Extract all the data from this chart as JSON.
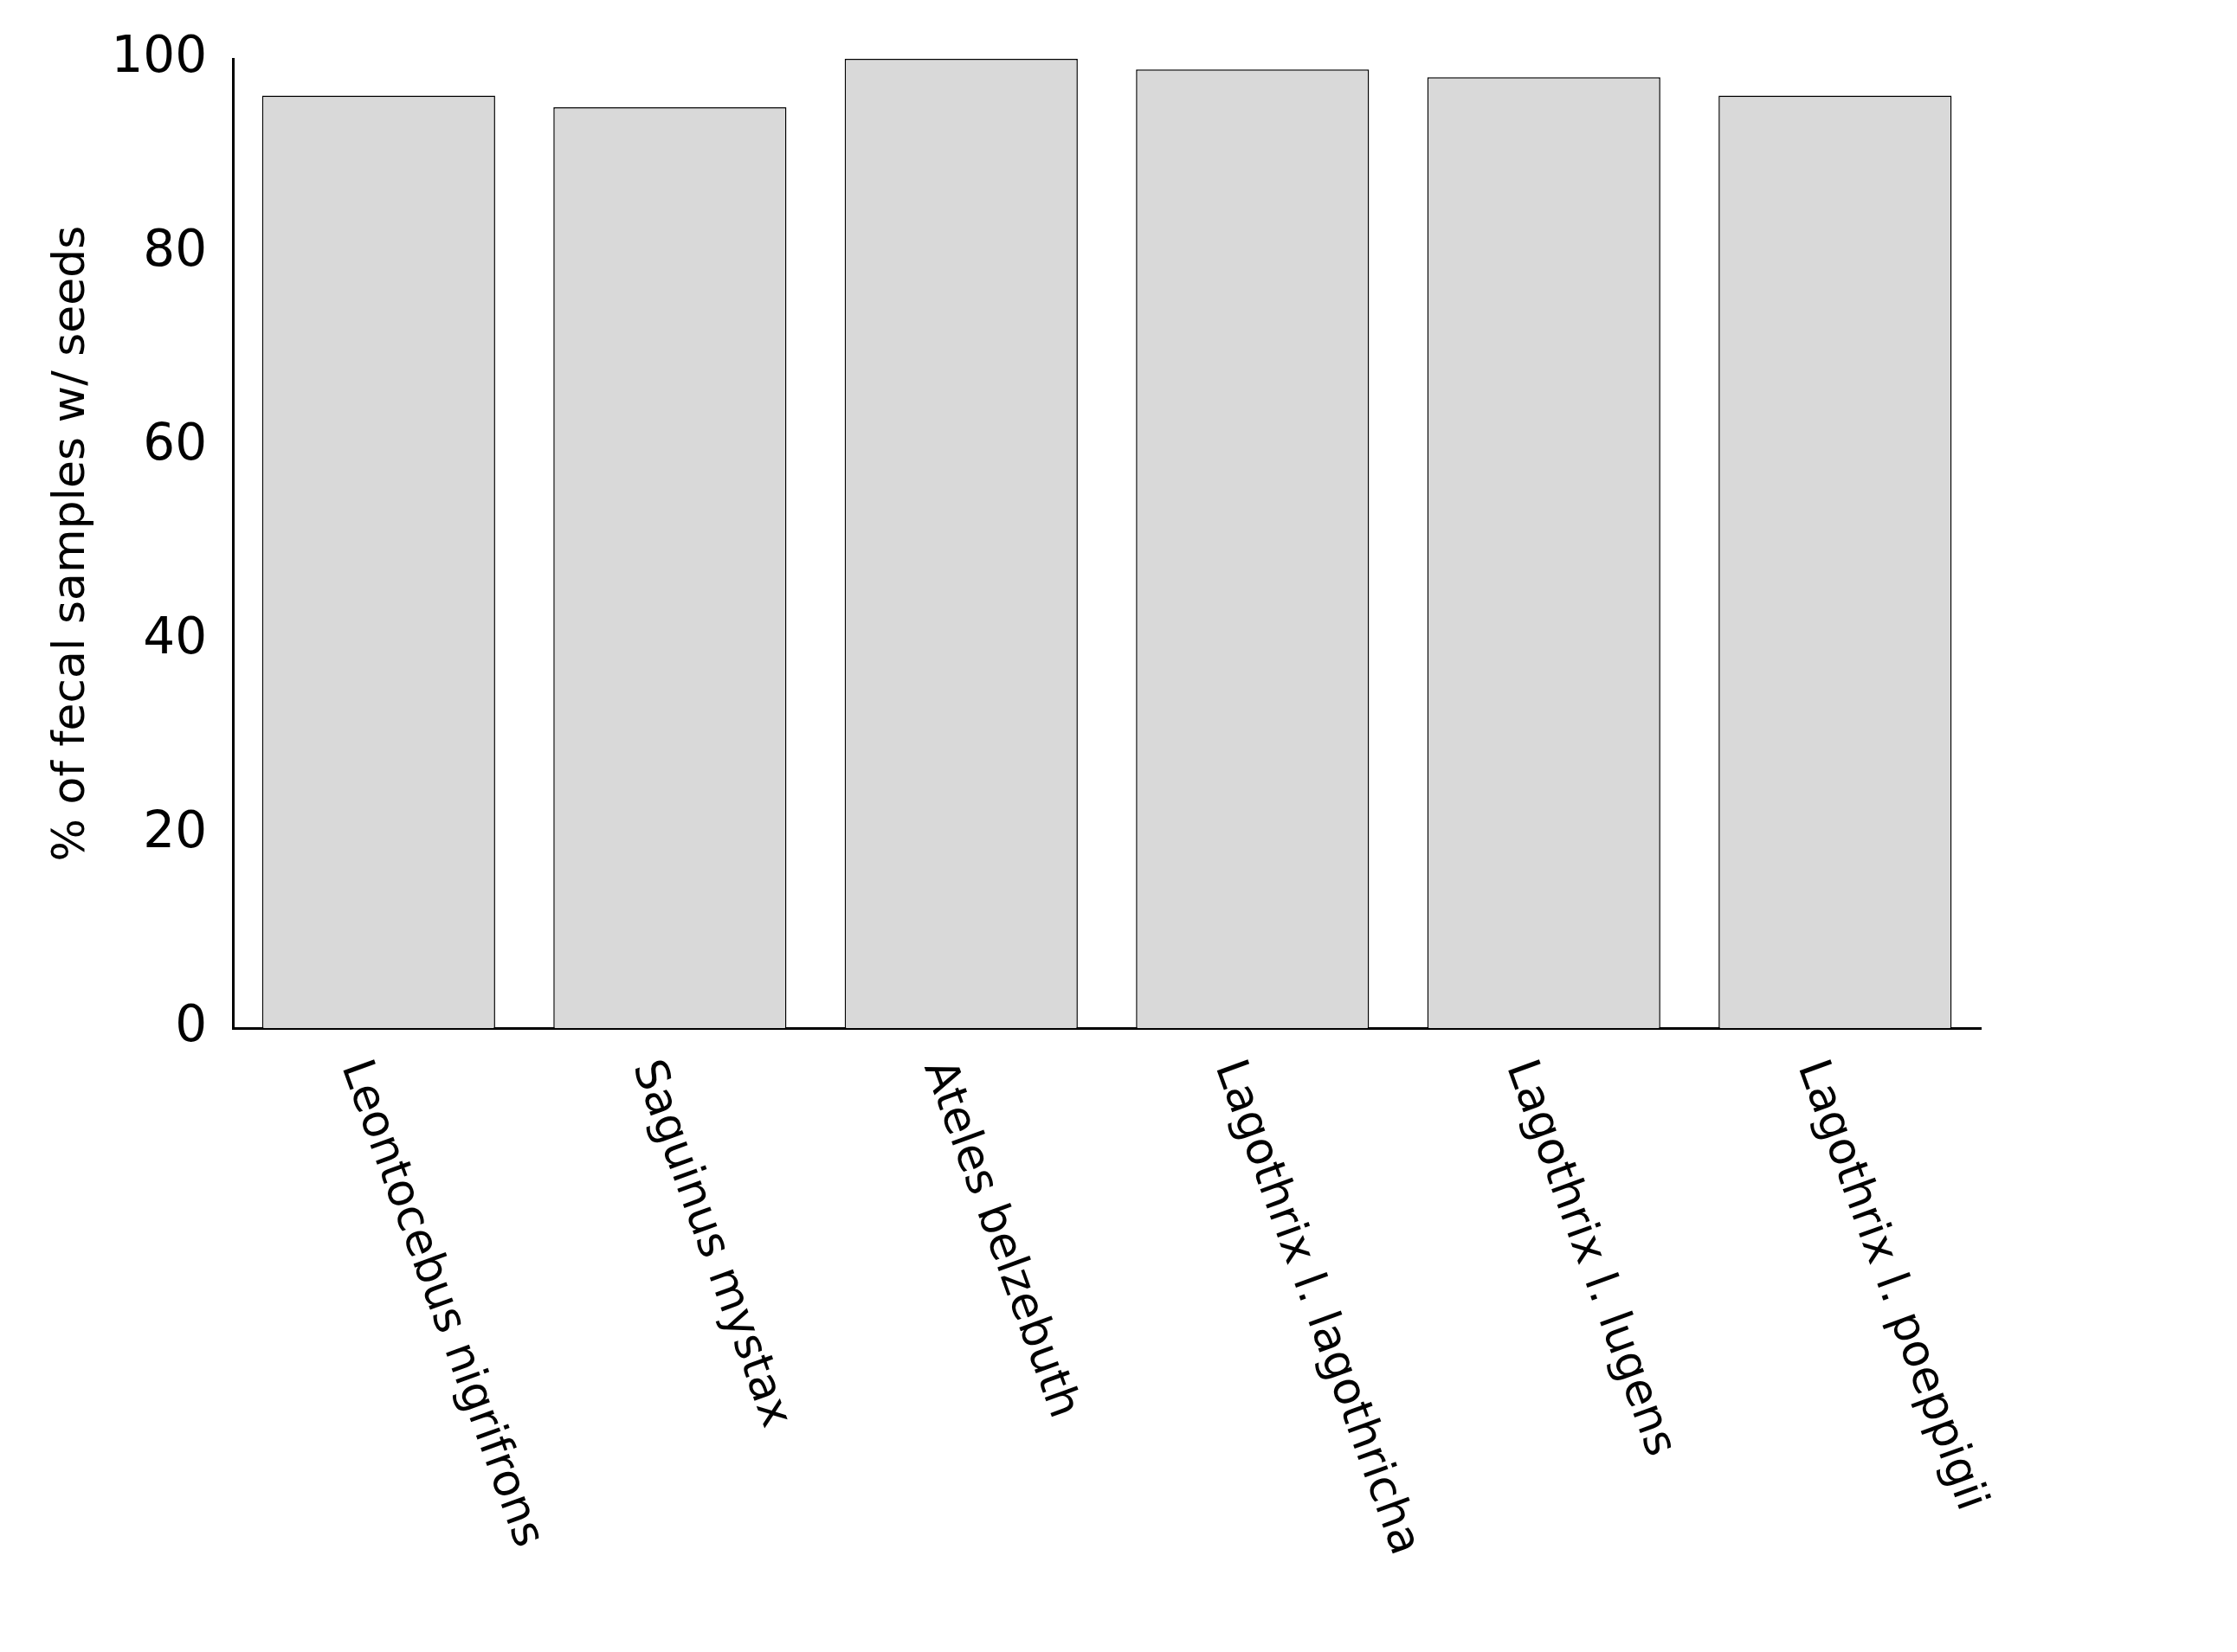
{
  "chart_data": {
    "type": "bar",
    "ylabel": "% of fecal samples w/ seeds",
    "categories": [
      "Leontocebus nigrifrons",
      "Saguinus mystax",
      "Ateles belzebuth",
      "Lagothrix l. lagothricha",
      "Lagothrix l. lugens",
      "Lagothrix l. poeppigii"
    ],
    "values": [
      96.2,
      95,
      100,
      98.9,
      98.1,
      96.2
    ],
    "color": "#d9d9d9",
    "ylim": [
      0,
      100
    ],
    "yticks": [
      0,
      20,
      40,
      60,
      80,
      100
    ],
    "grid": false,
    "legend": false
  }
}
